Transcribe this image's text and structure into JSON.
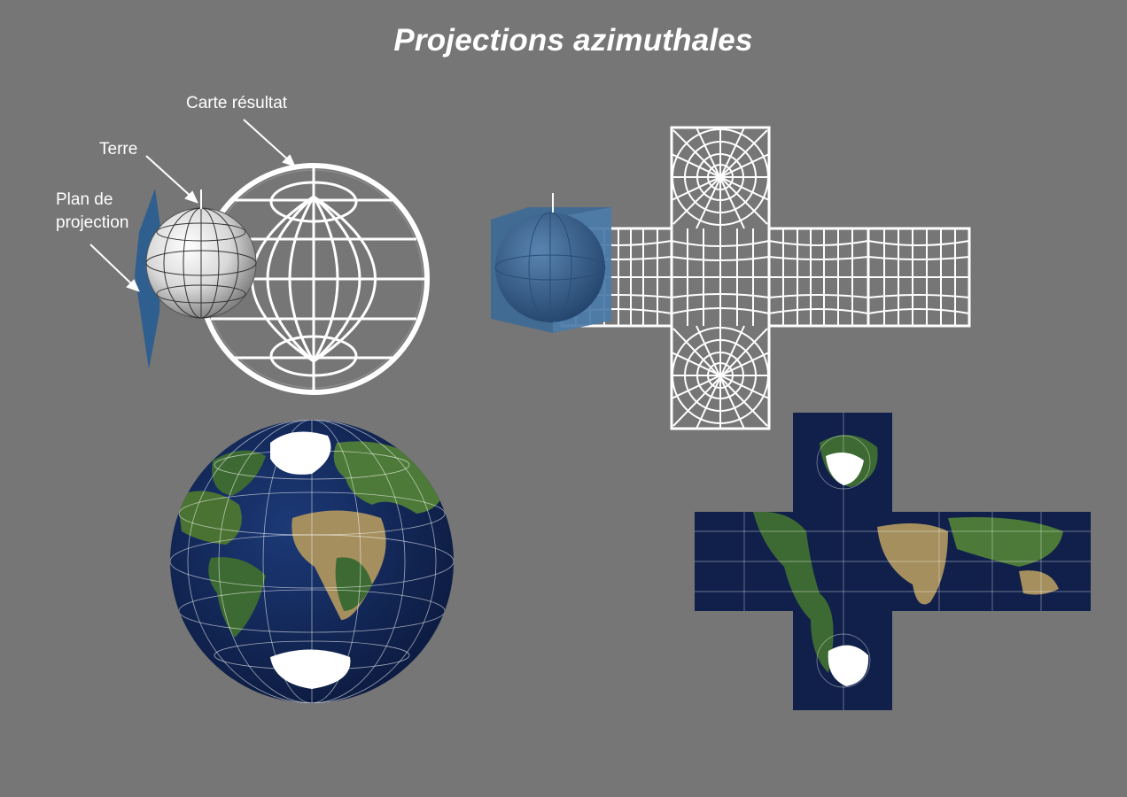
{
  "title": "Projections azimuthales",
  "labels": {
    "carte_resultat": "Carte résultat",
    "terre": "Terre",
    "plan_de": "Plan de",
    "projection": "projection"
  },
  "colors": {
    "background": "#767676",
    "grid": "#ffffff",
    "plane": "#2f5f8f",
    "ocean": "#10204a",
    "land": "#8a7a4e",
    "vegetation": "#3d6a32",
    "ice": "#ffffff"
  }
}
